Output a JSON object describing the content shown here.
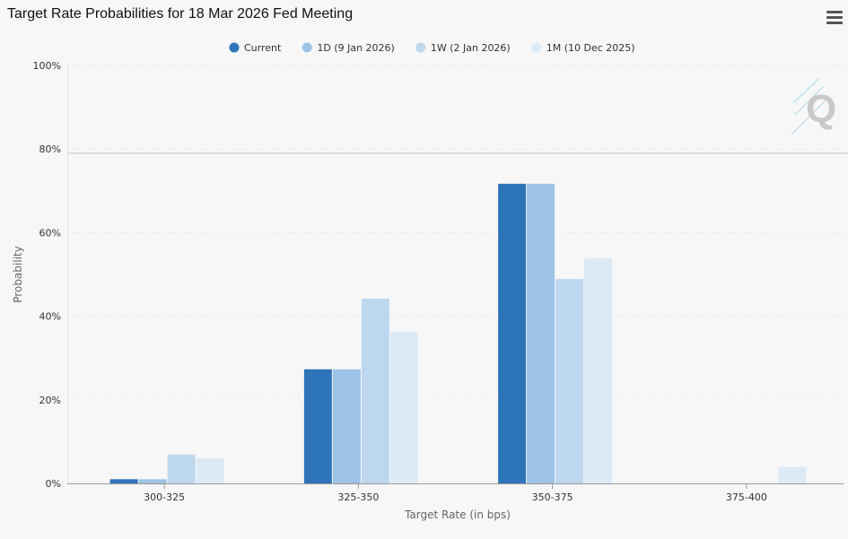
{
  "title": "Target Rate Probabilities for 18 Mar 2026 Fed Meeting",
  "menu_icon": "hamburger-menu-icon",
  "logo_text": "Q",
  "colors": {
    "current": "#2e74b8",
    "d1": "#9dc3e6",
    "w1": "#bdd7ee",
    "m1": "#ddeaf6",
    "grid": "#cfcfcf",
    "axis": "#999999"
  },
  "chart_data": {
    "type": "bar",
    "categories": [
      "300-325",
      "325-350",
      "350-375",
      "375-400"
    ],
    "series": [
      {
        "name": "Current",
        "values": [
          1.0,
          27.3,
          71.7,
          0
        ]
      },
      {
        "name": "1D (9 Jan 2026)",
        "values": [
          1.0,
          27.3,
          71.7,
          0
        ]
      },
      {
        "name": "1W (2 Jan 2026)",
        "values": [
          6.9,
          44.2,
          48.9,
          0
        ]
      },
      {
        "name": "1M (10 Dec 2025)",
        "values": [
          6.0,
          36.2,
          53.9,
          3.9
        ]
      }
    ],
    "xlabel": "Target Rate (in bps)",
    "ylabel": "Probability",
    "ylim": [
      0,
      100
    ],
    "yticks": [
      "0%",
      "20%",
      "40%",
      "60%",
      "80%",
      "100%"
    ],
    "ytick_values": [
      0,
      20,
      40,
      60,
      80,
      100
    ],
    "crosshair_value": 79,
    "grid": true,
    "legend_position": "top-center"
  }
}
